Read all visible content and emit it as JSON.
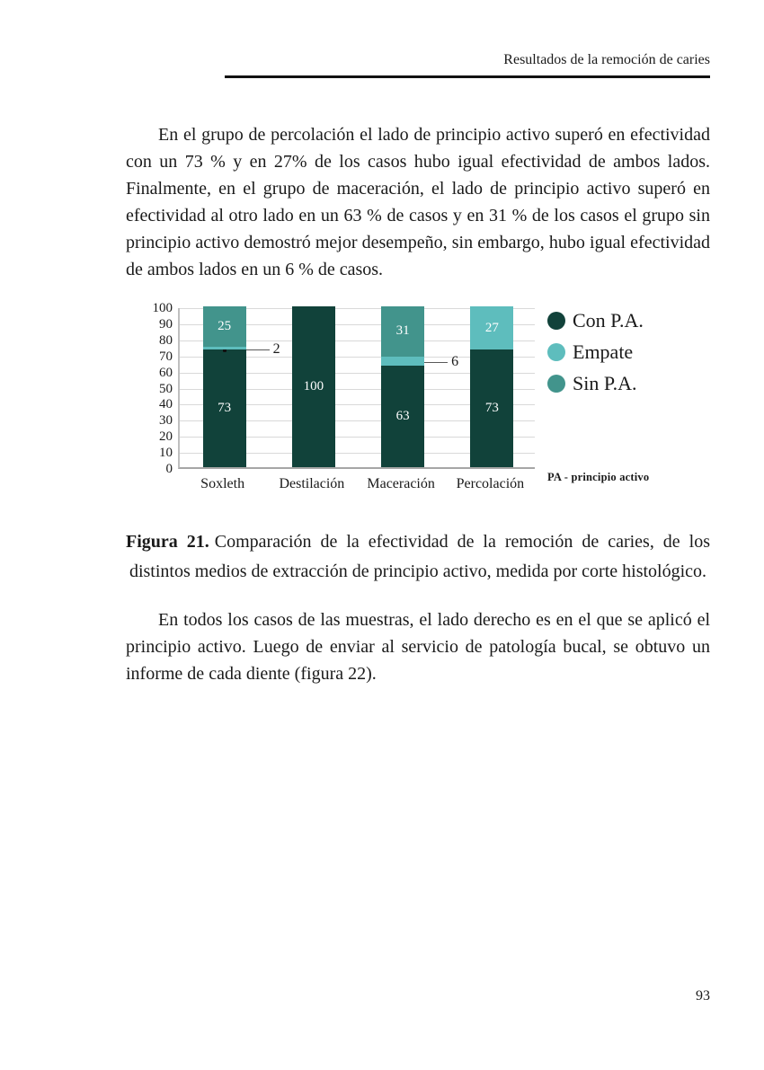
{
  "page": {
    "header": {
      "title": "Resultados de la remoción de caries"
    },
    "paragraph1": "En el grupo de percolación el lado de principio activo superó en efectividad con un 73 % y en 27% de los casos hubo igual efectividad de ambos lados. Finalmente, en el grupo de maceración, el lado de principio activo superó en efectividad al otro lado en un 63 % de casos y en 31 % de los casos el grupo sin principio activo demostró mejor desempeño, sin embargo, hubo igual efectividad de ambos lados en un 6 % de casos.",
    "caption": {
      "label": "Figura 21.",
      "text": "Comparación de la efectividad de la remoción de caries, de los distintos medios de extracción de principio activo, medida por corte histológico."
    },
    "paragraph2": "En todos los casos de las muestras, el lado derecho es en el que se aplicó el principio activo. Luego de enviar al servicio de patología bucal, se obtuvo un informe de cada diente (figura 22).",
    "page_number": "93"
  },
  "chart_data": {
    "type": "bar",
    "stacked": true,
    "categories": [
      "Soxleth",
      "Destilación",
      "Maceración",
      "Percolación"
    ],
    "series": [
      {
        "name": "Con P.A.",
        "color": "#11423a",
        "values": [
          73,
          100,
          63,
          73
        ]
      },
      {
        "name": "Empate",
        "color": "#5ebdbd",
        "values": [
          2,
          0,
          6,
          27
        ]
      },
      {
        "name": "Sin P.A.",
        "color": "#42948c",
        "values": [
          25,
          0,
          31,
          0
        ]
      }
    ],
    "title": "",
    "xlabel": "",
    "ylabel": "",
    "ylim": [
      0,
      100
    ],
    "ytick_step": 10,
    "grid": true,
    "legend_position": "right",
    "legend_note": "PA - principio activo",
    "callout_threshold": 10,
    "colors": {
      "gridline": "#d9d9d9",
      "y_axis": "#bfbfbf",
      "x_axis": "#a6a6a6"
    }
  }
}
